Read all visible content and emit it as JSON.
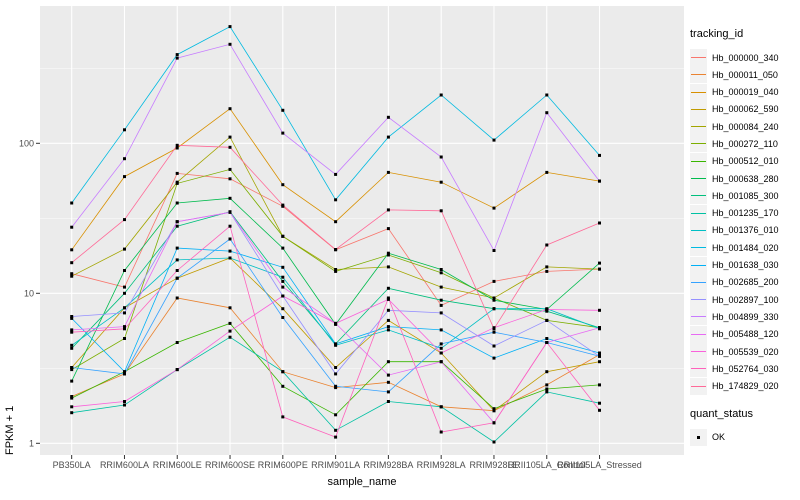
{
  "chart_data": {
    "type": "line",
    "title": "",
    "xlabel": "sample_name",
    "ylabel": "FPKM + 1",
    "y_scale": "log10",
    "ylim": [
      0.84,
      820
    ],
    "grid": true,
    "panel_bg": "#EBEBEB",
    "gridline_color": "#FFFFFF",
    "marker": "black-square",
    "categories": [
      "PB350LA",
      "RRIM600LA",
      "RRIM600LE",
      "RRIM600SE",
      "RRIM600PE",
      "RRIM901LA",
      "RRIM928BA",
      "RRIM928LA",
      "RRIM928LE",
      "RRII105LA_Control",
      "RRII105LA_Stressed"
    ],
    "y_ticks": [
      {
        "label": "1",
        "value": 1
      },
      {
        "label": "10",
        "value": 10
      },
      {
        "label": "100",
        "value": 100
      }
    ],
    "y_minor": [
      3.1623,
      31.623,
      316.23
    ],
    "legend": {
      "title": "tracking_id",
      "position": "right"
    },
    "quant_status_legend": {
      "title": "quant_status",
      "items": [
        "OK"
      ]
    },
    "series": [
      {
        "name": "Hb_000000_340",
        "color": "#F8766D",
        "values": [
          13.5,
          11,
          63,
          58,
          38,
          19.5,
          27,
          8.3,
          12,
          14,
          14.5
        ]
      },
      {
        "name": "Hb_000011_050",
        "color": "#EA8331",
        "values": [
          2.05,
          2.9,
          9.3,
          8.0,
          3.0,
          2.35,
          2.55,
          1.75,
          1.65,
          2.45,
          3.9
        ]
      },
      {
        "name": "Hb_000019_040",
        "color": "#D89000",
        "values": [
          19.5,
          60,
          93,
          170,
          53,
          30,
          64,
          55,
          37,
          64,
          56
        ]
      },
      {
        "name": "Hb_000062_590",
        "color": "#C09B00",
        "values": [
          3.2,
          8.0,
          12.6,
          17.2,
          7.9,
          3.2,
          6.6,
          4.0,
          1.65,
          3.0,
          3.5
        ]
      },
      {
        "name": "Hb_000084_240",
        "color": "#A3A500",
        "values": [
          13,
          19.7,
          55,
          110,
          24,
          14.4,
          15,
          11,
          9.3,
          15,
          14.5
        ]
      },
      {
        "name": "Hb_000272_110",
        "color": "#7CAE00",
        "values": [
          3.1,
          5.0,
          54,
          67,
          24,
          14,
          18,
          13.7,
          9.3,
          6.6,
          5.9
        ]
      },
      {
        "name": "Hb_000512_010",
        "color": "#39B600",
        "values": [
          2.0,
          3.0,
          4.7,
          6.3,
          2.4,
          1.55,
          3.5,
          3.5,
          1.7,
          2.3,
          2.45
        ]
      },
      {
        "name": "Hb_000638_280",
        "color": "#00BB4E",
        "values": [
          2.6,
          14.2,
          40,
          43,
          20,
          6.2,
          18.5,
          14.4,
          9.0,
          7.8,
          15.9
        ]
      },
      {
        "name": "Hb_001085_300",
        "color": "#00BF7D",
        "values": [
          4.3,
          10,
          28,
          35,
          12,
          4.6,
          10.8,
          9.0,
          7.9,
          7.6,
          5.9
        ]
      },
      {
        "name": "Hb_001235_170",
        "color": "#00C1A3",
        "values": [
          1.6,
          1.8,
          3.1,
          5.1,
          3.0,
          1.22,
          1.9,
          1.75,
          1.02,
          2.2,
          1.85
        ]
      },
      {
        "name": "Hb_001376_010",
        "color": "#00BFC4",
        "values": [
          4.5,
          8.0,
          16.7,
          17.2,
          12.8,
          4.5,
          5.7,
          4.3,
          7.9,
          7.9,
          5.8
        ]
      },
      {
        "name": "Hb_001484_020",
        "color": "#00BAE0",
        "values": [
          40,
          123,
          390,
          600,
          166,
          42,
          110,
          210,
          105,
          210,
          83
        ]
      },
      {
        "name": "Hb_001638_030",
        "color": "#00B0F6",
        "values": [
          6.8,
          3.0,
          20,
          19.1,
          14.9,
          4.6,
          6.0,
          5.7,
          3.7,
          5.0,
          4.0
        ]
      },
      {
        "name": "Hb_002685_200",
        "color": "#35A2FF",
        "values": [
          3.2,
          2.9,
          12.6,
          23,
          6.9,
          2.4,
          2.2,
          4.6,
          5.5,
          4.7,
          3.8
        ]
      },
      {
        "name": "Hb_002897_100",
        "color": "#9590FF",
        "values": [
          7.0,
          7.4,
          30,
          34.7,
          9.6,
          2.9,
          7.7,
          7.4,
          4.45,
          6.6,
          3.8
        ]
      },
      {
        "name": "Hb_004899_330",
        "color": "#C77CFF",
        "values": [
          27.6,
          79,
          370,
          457,
          117,
          62,
          149,
          81,
          19.3,
          160,
          56
        ]
      },
      {
        "name": "Hb_005488_120",
        "color": "#E76BF3",
        "values": [
          5.7,
          6.0,
          30,
          34.7,
          11,
          6.3,
          2.85,
          3.5,
          1.37,
          4.7,
          5.9
        ]
      },
      {
        "name": "Hb_005539_020",
        "color": "#FA62DB",
        "values": [
          1.75,
          1.9,
          3.1,
          5.6,
          9.6,
          6.3,
          9.1,
          4.0,
          5.9,
          7.8,
          7.7
        ]
      },
      {
        "name": "Hb_052764_030",
        "color": "#FF62BC",
        "values": [
          5.5,
          5.8,
          14.2,
          28,
          1.5,
          1.1,
          9.3,
          1.19,
          1.37,
          4.7,
          1.66
        ]
      },
      {
        "name": "Hb_174829_020",
        "color": "#FF6A98",
        "values": [
          16,
          31,
          97,
          94,
          38.7,
          19.6,
          36,
          35.5,
          5.8,
          21,
          29.4
        ]
      }
    ]
  }
}
